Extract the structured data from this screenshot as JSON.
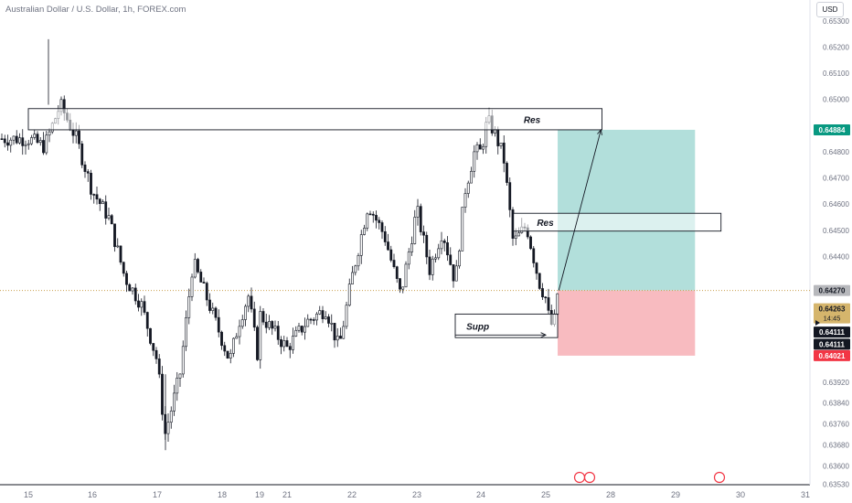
{
  "header": {
    "title": "Australian Dollar / U.S. Dollar, 1h, FOREX.com",
    "currency_button": "USD"
  },
  "colors": {
    "candle": "#131722",
    "profit_zone": "#b2dfdb",
    "loss_zone": "#f8bbc0",
    "target_badge": "#089981",
    "stop_badge": "#f23645",
    "price_line": "#c9a04f"
  },
  "chart_data": {
    "type": "candlestick",
    "symbol": "AUD/USD",
    "interval": "1h",
    "ylim": [
      0.635,
      0.6538
    ],
    "y_ticks": [
      "0.65300",
      "0.65200",
      "0.65100",
      "0.65000",
      "0.64800",
      "0.64700",
      "0.64600",
      "0.64500",
      "0.64400",
      "0.64200",
      "0.63920",
      "0.63840",
      "0.63760",
      "0.63680",
      "0.63600",
      "0.63530"
    ],
    "x_ticks": [
      "15",
      "16",
      "17",
      "18",
      "19",
      "21",
      "22",
      "23",
      "24",
      "25",
      "28",
      "29",
      "30",
      "31"
    ],
    "x_tick_dates": [
      15,
      16,
      17,
      18,
      19,
      21,
      22,
      23,
      24,
      25,
      28,
      29,
      30,
      31
    ],
    "price_path": [
      [
        15.0,
        0.6485
      ],
      [
        15.25,
        0.6482
      ],
      [
        15.5,
        0.6498
      ],
      [
        15.75,
        0.6485
      ],
      [
        16.0,
        0.6465
      ],
      [
        16.25,
        0.6455
      ],
      [
        16.5,
        0.6432
      ],
      [
        16.75,
        0.6422
      ],
      [
        17.0,
        0.64
      ],
      [
        17.12,
        0.6372
      ],
      [
        17.35,
        0.6395
      ],
      [
        17.55,
        0.6438
      ],
      [
        17.75,
        0.6425
      ],
      [
        18.0,
        0.6408
      ],
      [
        18.2,
        0.64
      ],
      [
        18.45,
        0.6415
      ],
      [
        18.7,
        0.6425
      ],
      [
        18.95,
        0.6402
      ],
      [
        19.0,
        0.6418
      ],
      [
        21.0,
        0.6405
      ],
      [
        21.3,
        0.6415
      ],
      [
        21.6,
        0.642
      ],
      [
        21.8,
        0.6405
      ],
      [
        22.0,
        0.6432
      ],
      [
        22.25,
        0.646
      ],
      [
        22.5,
        0.6448
      ],
      [
        22.75,
        0.6425
      ],
      [
        23.0,
        0.6458
      ],
      [
        23.2,
        0.6435
      ],
      [
        23.4,
        0.645
      ],
      [
        23.6,
        0.643
      ],
      [
        23.75,
        0.6465
      ],
      [
        23.9,
        0.648
      ],
      [
        24.0,
        0.648
      ],
      [
        24.1,
        0.6492
      ],
      [
        24.2,
        0.6488
      ],
      [
        24.35,
        0.6478
      ],
      [
        24.5,
        0.6445
      ],
      [
        24.7,
        0.6452
      ],
      [
        24.9,
        0.643
      ],
      [
        25.1,
        0.6418
      ],
      [
        25.35,
        0.6412
      ],
      [
        25.5,
        0.6422
      ],
      [
        25.55,
        0.6427
      ]
    ],
    "annotations": [
      {
        "type": "rectangle",
        "label": "Res",
        "x0": 15.0,
        "x1": 27.6,
        "y0": 0.64884,
        "y1": 0.64965
      },
      {
        "type": "rectangle",
        "label": "Res",
        "x0": 24.5,
        "x1": 29.7,
        "y0": 0.64497,
        "y1": 0.64565
      },
      {
        "type": "rectangle",
        "label": "Supp",
        "x0": 23.6,
        "x1": 25.55,
        "y0": 0.6409,
        "y1": 0.6418
      },
      {
        "type": "arrow",
        "from": [
          23.6,
          0.641
        ],
        "to": [
          25.0,
          0.641
        ]
      },
      {
        "type": "arrow",
        "from": [
          25.6,
          0.6427
        ],
        "to": [
          27.55,
          0.64884
        ]
      }
    ],
    "long_position": {
      "x0": 25.55,
      "x1": 29.3,
      "entry": 0.6427,
      "target": 0.64884,
      "stop": 0.64021
    },
    "price_labels": {
      "target": "0.64884",
      "entry": "0.64270",
      "current_price": "0.64263",
      "countdown": "14:45",
      "crosshair_1": "0.64111",
      "crosshair_2": "0.64111",
      "stop": "0.64021"
    }
  }
}
